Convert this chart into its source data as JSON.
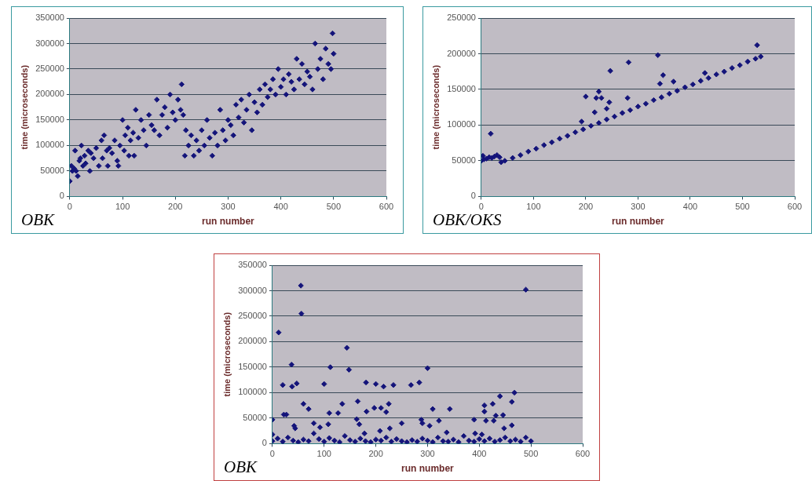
{
  "chart_data": [
    {
      "type": "scatter",
      "xlabel": "run number",
      "ylabel": "time (microseconds)",
      "annotations": [
        "OBK"
      ],
      "marker": "diamond",
      "grid": "y",
      "legend": false,
      "xlim": [
        0,
        600
      ],
      "xticks": [
        0,
        100,
        200,
        300,
        400,
        500,
        600
      ],
      "ylim": [
        0,
        350000
      ],
      "yticks": [
        0,
        50000,
        100000,
        150000,
        200000,
        250000,
        300000,
        350000
      ],
      "series": [
        {
          "color": "#14147a",
          "x": [
            0,
            3,
            5,
            8,
            10,
            12,
            15,
            18,
            20,
            22,
            25,
            28,
            30,
            35,
            38,
            40,
            45,
            50,
            55,
            60,
            62,
            65,
            70,
            72,
            75,
            80,
            85,
            90,
            92,
            95,
            100,
            103,
            105,
            110,
            112,
            115,
            120,
            122,
            125,
            130,
            135,
            140,
            145,
            150,
            155,
            160,
            165,
            170,
            175,
            180,
            185,
            190,
            195,
            200,
            205,
            210,
            212,
            215,
            218,
            220,
            225,
            230,
            235,
            240,
            245,
            250,
            255,
            260,
            265,
            270,
            275,
            280,
            285,
            290,
            295,
            300,
            305,
            310,
            315,
            320,
            325,
            330,
            335,
            340,
            345,
            350,
            355,
            360,
            365,
            370,
            375,
            380,
            385,
            390,
            395,
            400,
            405,
            410,
            415,
            420,
            425,
            430,
            435,
            440,
            445,
            450,
            455,
            460,
            465,
            470,
            475,
            480,
            485,
            490,
            495,
            498,
            500
          ],
          "values": [
            30000,
            60000,
            50000,
            55000,
            90000,
            50000,
            40000,
            70000,
            75000,
            100000,
            60000,
            80000,
            65000,
            90000,
            50000,
            85000,
            75000,
            95000,
            60000,
            110000,
            75000,
            120000,
            90000,
            60000,
            95000,
            85000,
            110000,
            70000,
            60000,
            100000,
            150000,
            90000,
            120000,
            135000,
            80000,
            110000,
            125000,
            80000,
            170000,
            115000,
            150000,
            130000,
            100000,
            160000,
            140000,
            130000,
            190000,
            120000,
            160000,
            175000,
            135000,
            200000,
            165000,
            150000,
            190000,
            170000,
            220000,
            160000,
            80000,
            130000,
            100000,
            120000,
            80000,
            110000,
            90000,
            130000,
            100000,
            150000,
            115000,
            80000,
            125000,
            100000,
            170000,
            130000,
            110000,
            150000,
            140000,
            120000,
            180000,
            155000,
            190000,
            145000,
            170000,
            200000,
            130000,
            185000,
            165000,
            210000,
            180000,
            220000,
            195000,
            210000,
            230000,
            200000,
            250000,
            215000,
            230000,
            200000,
            240000,
            225000,
            210000,
            270000,
            230000,
            260000,
            220000,
            245000,
            235000,
            210000,
            300000,
            250000,
            270000,
            230000,
            290000,
            260000,
            250000,
            320000,
            280000
          ]
        }
      ]
    },
    {
      "type": "scatter",
      "xlabel": "run number",
      "ylabel": "time (microseconds)",
      "annotations": [
        "OBK/OKS"
      ],
      "marker": "diamond",
      "grid": "y",
      "legend": false,
      "xlim": [
        0,
        600
      ],
      "xticks": [
        0,
        100,
        200,
        300,
        400,
        500,
        600
      ],
      "ylim": [
        0,
        250000
      ],
      "yticks": [
        0,
        50000,
        100000,
        150000,
        200000,
        250000
      ],
      "series": [
        {
          "color": "#14147a",
          "x": [
            0,
            3,
            5,
            10,
            15,
            20,
            25,
            30,
            35,
            38,
            45,
            60,
            75,
            90,
            105,
            120,
            135,
            150,
            165,
            180,
            195,
            210,
            225,
            240,
            255,
            270,
            285,
            300,
            315,
            330,
            345,
            360,
            375,
            390,
            405,
            420,
            435,
            450,
            465,
            480,
            495,
            510,
            525,
            535,
            18,
            192,
            200,
            217,
            220,
            225,
            230,
            240,
            245,
            247,
            280,
            282,
            338,
            342,
            348,
            368,
            428,
            528
          ],
          "values": [
            50000,
            57000,
            52000,
            53000,
            55000,
            54000,
            56000,
            58000,
            55000,
            48000,
            50000,
            54000,
            58000,
            63000,
            67000,
            72000,
            76000,
            81000,
            85000,
            90000,
            94000,
            99000,
            103000,
            108000,
            112000,
            117000,
            121000,
            126000,
            130000,
            135000,
            139000,
            144000,
            148000,
            153000,
            157000,
            162000,
            166000,
            171000,
            175000,
            180000,
            184000,
            189000,
            193000,
            196000,
            88000,
            105000,
            140000,
            118000,
            138000,
            147000,
            138000,
            123000,
            132000,
            176000,
            138000,
            188000,
            198000,
            158000,
            170000,
            161000,
            173000,
            212000
          ]
        }
      ]
    },
    {
      "type": "scatter",
      "xlabel": "run number",
      "ylabel": "time (microseconds)",
      "annotations": [
        "OBK"
      ],
      "marker": "diamond",
      "grid": "y",
      "legend": false,
      "xlim": [
        0,
        600
      ],
      "xticks": [
        0,
        100,
        200,
        300,
        400,
        500,
        600
      ],
      "ylim": [
        0,
        350000
      ],
      "yticks": [
        0,
        50000,
        100000,
        150000,
        200000,
        250000,
        300000,
        350000
      ],
      "series": [
        {
          "color": "#14147a",
          "x": [
            0,
            0,
            12,
            20,
            22,
            27,
            37,
            38,
            42,
            44,
            47,
            55,
            56,
            60,
            70,
            80,
            92,
            100,
            108,
            110,
            112,
            127,
            135,
            144,
            148,
            163,
            165,
            168,
            178,
            181,
            182,
            197,
            200,
            208,
            210,
            215,
            220,
            225,
            227,
            234,
            250,
            268,
            284,
            288,
            290,
            300,
            304,
            310,
            322,
            337,
            343,
            390,
            392,
            405,
            410,
            410,
            413,
            426,
            428,
            432,
            440,
            446,
            448,
            463,
            463,
            468,
            490,
            0,
            10,
            20,
            30,
            40,
            50,
            60,
            70,
            80,
            90,
            100,
            110,
            120,
            130,
            140,
            150,
            160,
            170,
            180,
            190,
            200,
            210,
            220,
            230,
            240,
            250,
            260,
            270,
            280,
            290,
            300,
            310,
            320,
            330,
            340,
            350,
            360,
            370,
            380,
            390,
            400,
            410,
            420,
            430,
            440,
            450,
            460,
            470,
            480,
            490,
            500
          ],
          "values": [
            47000,
            18000,
            218000,
            115000,
            57000,
            57000,
            155000,
            112000,
            35000,
            30000,
            118000,
            310000,
            255000,
            78000,
            68000,
            40000,
            32000,
            117000,
            38000,
            60000,
            150000,
            60000,
            78000,
            188000,
            145000,
            48000,
            83000,
            38000,
            20000,
            120000,
            63000,
            70000,
            117000,
            25000,
            70000,
            112000,
            62000,
            78000,
            30000,
            115000,
            40000,
            115000,
            120000,
            47000,
            40000,
            148000,
            35000,
            68000,
            45000,
            22000,
            68000,
            47000,
            20000,
            18000,
            75000,
            63000,
            45000,
            78000,
            45000,
            55000,
            93000,
            56000,
            30000,
            82000,
            36000,
            100000,
            302000,
            5000,
            10000,
            4000,
            12000,
            6000,
            3000,
            8000,
            5000,
            20000,
            9000,
            4000,
            11000,
            6000,
            3000,
            15000,
            7000,
            4000,
            10000,
            5000,
            3000,
            8000,
            6000,
            12000,
            4000,
            9000,
            5000,
            3000,
            7000,
            4000,
            10000,
            6000,
            3000,
            12000,
            5000,
            4000,
            8000,
            3000,
            15000,
            6000,
            4000,
            9000,
            5000,
            10000,
            4000,
            7000,
            12000,
            5000,
            8000,
            4000,
            12000,
            5000
          ]
        }
      ]
    }
  ]
}
